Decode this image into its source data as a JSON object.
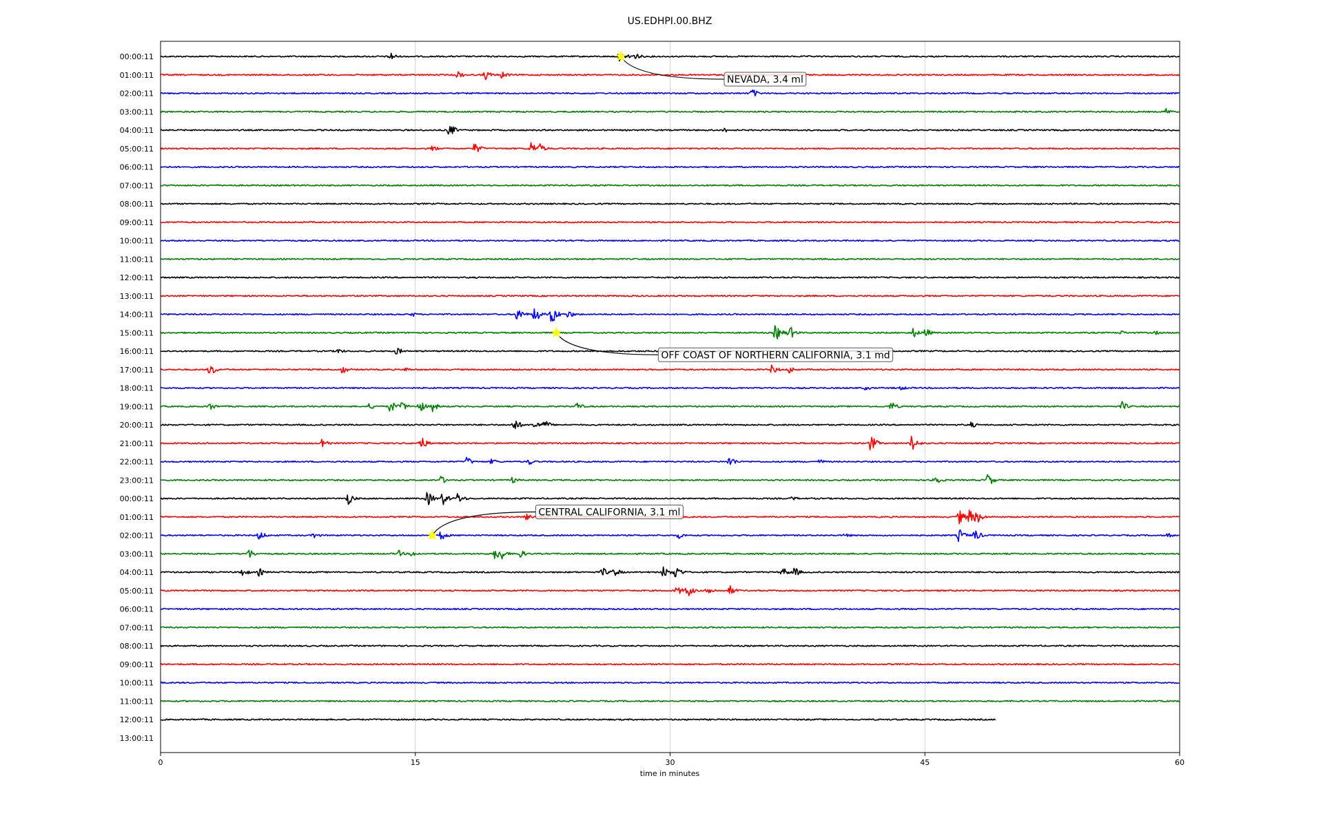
{
  "chart_data": {
    "type": "line",
    "title": "US.EDHPI.00.BHZ",
    "xlabel": "time in minutes",
    "ylabel": "",
    "xlim": [
      0,
      60
    ],
    "xticks": [
      0,
      15,
      30,
      45,
      60
    ],
    "grid": "vertical lines at 15, 30, 45",
    "trace_colors": [
      "#000000",
      "#ff0000",
      "#0000ff",
      "#008000"
    ],
    "rows": [
      {
        "label": "00:00:11",
        "bursts": [
          [
            13.5,
            0.6
          ],
          [
            27.0,
            0.5
          ],
          [
            27.6,
            0.5
          ],
          [
            28.0,
            0.4
          ]
        ]
      },
      {
        "label": "01:00:11",
        "bursts": [
          [
            17.5,
            0.5
          ],
          [
            19.1,
            0.6
          ],
          [
            20.1,
            0.5
          ]
        ]
      },
      {
        "label": "02:00:11",
        "bursts": [
          [
            34.8,
            0.6
          ]
        ]
      },
      {
        "label": "03:00:11",
        "bursts": [
          [
            59.2,
            0.4
          ]
        ]
      },
      {
        "label": "04:00:11",
        "bursts": [
          [
            17.0,
            0.8
          ],
          [
            33.2,
            0.3
          ]
        ]
      },
      {
        "label": "05:00:11",
        "bursts": [
          [
            16.0,
            0.4
          ],
          [
            18.5,
            0.7
          ],
          [
            21.8,
            0.8
          ],
          [
            22.3,
            0.6
          ]
        ]
      },
      {
        "label": "06:00:11",
        "bursts": []
      },
      {
        "label": "07:00:11",
        "bursts": []
      },
      {
        "label": "08:00:11",
        "bursts": []
      },
      {
        "label": "09:00:11",
        "bursts": []
      },
      {
        "label": "10:00:11",
        "bursts": []
      },
      {
        "label": "11:00:11",
        "bursts": []
      },
      {
        "label": "12:00:11",
        "bursts": []
      },
      {
        "label": "13:00:11",
        "bursts": []
      },
      {
        "label": "14:00:11",
        "bursts": [
          [
            14.8,
            0.3
          ],
          [
            21.0,
            0.9
          ],
          [
            22.0,
            1.0
          ],
          [
            23.0,
            1.2
          ],
          [
            24.0,
            0.5
          ]
        ]
      },
      {
        "label": "15:00:11",
        "bursts": [
          [
            36.2,
            1.0
          ],
          [
            37.0,
            0.9
          ],
          [
            44.3,
            0.6
          ],
          [
            45.0,
            0.6
          ],
          [
            56.5,
            0.3
          ],
          [
            58.5,
            0.3
          ]
        ]
      },
      {
        "label": "16:00:11",
        "bursts": [
          [
            10.4,
            0.4
          ],
          [
            13.9,
            0.5
          ]
        ]
      },
      {
        "label": "17:00:11",
        "bursts": [
          [
            2.9,
            0.8
          ],
          [
            10.7,
            0.5
          ],
          [
            14.4,
            0.3
          ],
          [
            36.0,
            0.6
          ],
          [
            37.0,
            0.5
          ]
        ]
      },
      {
        "label": "18:00:11",
        "bursts": [
          [
            41.5,
            0.3
          ],
          [
            43.6,
            0.3
          ]
        ]
      },
      {
        "label": "19:00:11",
        "bursts": [
          [
            2.9,
            0.5
          ],
          [
            12.3,
            0.4
          ],
          [
            13.5,
            0.8
          ],
          [
            14.2,
            0.6
          ],
          [
            15.2,
            0.8
          ],
          [
            16.0,
            0.6
          ],
          [
            24.5,
            0.5
          ],
          [
            43.0,
            0.6
          ],
          [
            56.6,
            0.6
          ]
        ]
      },
      {
        "label": "20:00:11",
        "bursts": [
          [
            20.8,
            0.8
          ],
          [
            22.0,
            0.6
          ],
          [
            22.6,
            0.6
          ],
          [
            47.7,
            0.4
          ]
        ]
      },
      {
        "label": "21:00:11",
        "bursts": [
          [
            9.5,
            0.7
          ],
          [
            15.3,
            0.9
          ],
          [
            41.8,
            1.0
          ],
          [
            44.2,
            1.0
          ]
        ]
      },
      {
        "label": "22:00:11",
        "bursts": [
          [
            18.0,
            0.6
          ],
          [
            19.5,
            0.4
          ],
          [
            21.7,
            0.4
          ],
          [
            33.5,
            0.7
          ],
          [
            38.8,
            0.3
          ]
        ]
      },
      {
        "label": "23:00:11",
        "bursts": [
          [
            16.5,
            0.5
          ],
          [
            20.7,
            0.4
          ],
          [
            45.5,
            0.9
          ],
          [
            48.7,
            0.8
          ]
        ]
      },
      {
        "label": "00:00:11",
        "bursts": [
          [
            11.0,
            0.8
          ],
          [
            15.7,
            0.9
          ],
          [
            16.6,
            0.8
          ],
          [
            17.5,
            0.7
          ],
          [
            37.2,
            0.3
          ]
        ]
      },
      {
        "label": "01:00:11",
        "bursts": [
          [
            21.5,
            0.4
          ],
          [
            22.5,
            0.4
          ],
          [
            47.0,
            0.9
          ],
          [
            47.6,
            0.9
          ],
          [
            48.0,
            0.9
          ]
        ]
      },
      {
        "label": "02:00:11",
        "bursts": [
          [
            5.8,
            0.6
          ],
          [
            9.0,
            0.4
          ],
          [
            16.5,
            0.6
          ],
          [
            30.5,
            0.4
          ],
          [
            40.3,
            0.3
          ],
          [
            47.0,
            0.8
          ],
          [
            47.9,
            0.8
          ],
          [
            59.3,
            0.3
          ]
        ]
      },
      {
        "label": "03:00:11",
        "bursts": [
          [
            5.2,
            0.6
          ],
          [
            14.0,
            0.4
          ],
          [
            14.8,
            0.4
          ],
          [
            19.7,
            0.8
          ],
          [
            20.0,
            0.8
          ],
          [
            21.1,
            0.6
          ]
        ]
      },
      {
        "label": "04:00:11",
        "bursts": [
          [
            4.8,
            0.6
          ],
          [
            5.8,
            0.5
          ],
          [
            26.0,
            0.6
          ],
          [
            26.7,
            0.6
          ],
          [
            29.6,
            0.7
          ],
          [
            30.3,
            0.9
          ],
          [
            36.6,
            0.6
          ],
          [
            37.3,
            0.6
          ]
        ]
      },
      {
        "label": "05:00:11",
        "bursts": [
          [
            30.4,
            0.6
          ],
          [
            31.0,
            0.8
          ],
          [
            32.2,
            0.6
          ],
          [
            33.5,
            0.6
          ]
        ]
      },
      {
        "label": "06:00:11",
        "bursts": []
      },
      {
        "label": "07:00:11",
        "bursts": []
      },
      {
        "label": "08:00:11",
        "bursts": []
      },
      {
        "label": "09:00:11",
        "bursts": []
      },
      {
        "label": "10:00:11",
        "bursts": []
      },
      {
        "label": "11:00:11",
        "bursts": []
      },
      {
        "label": "12:00:11",
        "bursts": [],
        "end_minute": 49.2
      },
      {
        "label": "13:00:11",
        "bursts": [],
        "end_minute": 0
      }
    ],
    "annotations": [
      {
        "text": "NEVADA, 3.4 ml",
        "row": 0,
        "minute": 27.1
      },
      {
        "text": "OFF COAST OF NORTHERN CALIFORNIA, 3.1 md",
        "row": 15,
        "minute": 23.3
      },
      {
        "text": "CENTRAL CALIFORNIA, 3.1 ml",
        "row": 26,
        "minute": 16.0
      }
    ],
    "event_marker_color": "#ffff00"
  }
}
